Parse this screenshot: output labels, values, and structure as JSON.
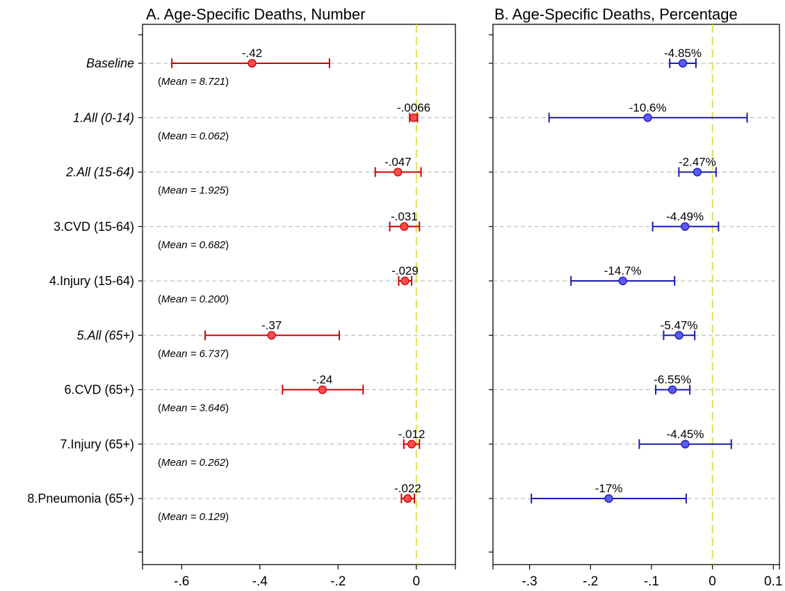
{
  "chart_data": [
    {
      "type": "scatter",
      "subtype": "coefficient-plot",
      "title": "A. Age-Specific Deaths, Number",
      "xlim": [
        -0.7,
        0.1
      ],
      "xticks": [
        -0.6,
        -0.4,
        -0.2,
        0
      ],
      "xtick_labels": [
        "-.6",
        "-.4",
        "-.2",
        "0"
      ],
      "reference_line": {
        "x": 0,
        "color": "#d9d93a",
        "style": "dashed"
      },
      "grid": "horizontal dashed",
      "color": "#cc0000",
      "marker_fill": "#ff4d4d",
      "rows": [
        {
          "label": "Baseline",
          "italic": true,
          "estimate": -0.42,
          "ci": [
            -0.625,
            -0.222
          ],
          "value_label": "-.42",
          "mean_label": "Mean = 8.721"
        },
        {
          "label": "1.All (0-14)",
          "italic": true,
          "estimate": -0.0066,
          "ci": [
            -0.017,
            0.003
          ],
          "value_label": "-.0066",
          "mean_label": "Mean = 0.062"
        },
        {
          "label": "2.All (15-64)",
          "italic": true,
          "estimate": -0.047,
          "ci": [
            -0.105,
            0.012
          ],
          "value_label": "-.047",
          "mean_label": "Mean = 1.925"
        },
        {
          "label": "3.CVD (15-64)",
          "italic": false,
          "estimate": -0.031,
          "ci": [
            -0.068,
            0.008
          ],
          "value_label": "-.031",
          "mean_label": "Mean = 0.682"
        },
        {
          "label": "4.Injury (15-64)",
          "italic": false,
          "estimate": -0.029,
          "ci": [
            -0.045,
            -0.012
          ],
          "value_label": "-.029",
          "mean_label": "Mean = 0.200"
        },
        {
          "label": "5.All (65+)",
          "italic": true,
          "estimate": -0.37,
          "ci": [
            -0.54,
            -0.197
          ],
          "value_label": "-.37",
          "mean_label": "Mean = 6.737"
        },
        {
          "label": "6.CVD (65+)",
          "italic": false,
          "estimate": -0.24,
          "ci": [
            -0.342,
            -0.136
          ],
          "value_label": "-.24",
          "mean_label": "Mean = 3.646"
        },
        {
          "label": "7.Injury (65+)",
          "italic": false,
          "estimate": -0.012,
          "ci": [
            -0.032,
            0.008
          ],
          "value_label": "-.012",
          "mean_label": "Mean = 0.262"
        },
        {
          "label": "8.Pneumonia (65+)",
          "italic": false,
          "estimate": -0.022,
          "ci": [
            -0.038,
            -0.005
          ],
          "value_label": "-.022",
          "mean_label": "Mean = 0.129"
        }
      ]
    },
    {
      "type": "scatter",
      "subtype": "coefficient-plot",
      "title": "B. Age-Specific Deaths, Percentage",
      "xlim": [
        -0.36,
        0.11
      ],
      "xticks": [
        -0.3,
        -0.2,
        -0.1,
        0,
        0.1
      ],
      "xtick_labels": [
        "-.3",
        "-.2",
        "-.1",
        "0",
        "0.1"
      ],
      "reference_line": {
        "x": 0,
        "color": "#d9d93a",
        "style": "dashed"
      },
      "grid": "horizontal dashed",
      "color": "#1a1aaa",
      "marker_fill": "#5a5aff",
      "rows": [
        {
          "estimate": -0.0485,
          "ci": [
            -0.07,
            -0.027
          ],
          "value_label": "-4.85%"
        },
        {
          "estimate": -0.106,
          "ci": [
            -0.268,
            0.057
          ],
          "value_label": "-10.6%"
        },
        {
          "estimate": -0.0247,
          "ci": [
            -0.055,
            0.006
          ],
          "value_label": "-2.47%"
        },
        {
          "estimate": -0.0449,
          "ci": [
            -0.098,
            0.01
          ],
          "value_label": "-4.49%"
        },
        {
          "estimate": -0.147,
          "ci": [
            -0.232,
            -0.062
          ],
          "value_label": "-14.7%"
        },
        {
          "estimate": -0.0547,
          "ci": [
            -0.08,
            -0.029
          ],
          "value_label": "-5.47%"
        },
        {
          "estimate": -0.0655,
          "ci": [
            -0.093,
            -0.037
          ],
          "value_label": "-6.55%"
        },
        {
          "estimate": -0.0445,
          "ci": [
            -0.12,
            0.031
          ],
          "value_label": "-4.45%"
        },
        {
          "estimate": -0.17,
          "ci": [
            -0.297,
            -0.043
          ],
          "value_label": "-17%"
        }
      ]
    }
  ]
}
